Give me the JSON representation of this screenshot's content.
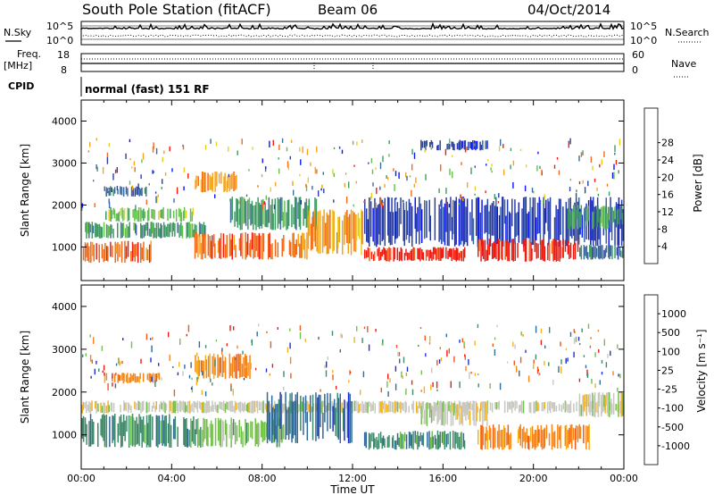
{
  "header": {
    "station": "South Pole Station (fitACF)",
    "beam": "Beam 06",
    "date": "04/Oct/2014"
  },
  "status_panels": {
    "nsky_label": "N.Sky",
    "nsearch_label": "N.Search",
    "noise_ticks": [
      "10^5",
      "10^0"
    ],
    "freq_label": "Freq.",
    "freq_unit": "[MHz]",
    "freq_ticks": [
      "18",
      "8"
    ],
    "nave_label": "Nave",
    "nave_ticks": [
      "60",
      "0"
    ],
    "cpid_label": "CPID",
    "cpid_value": "normal (fast) 151 RF"
  },
  "chart_data": [
    {
      "type": "heatmap",
      "name": "power",
      "ylabel": "Slant Range [km]",
      "y_ticks": [
        1000,
        2000,
        3000,
        4000
      ],
      "ylim": [
        200,
        4500
      ],
      "x_ticks": [
        "00:00",
        "04:00",
        "08:00",
        "12:00",
        "16:00",
        "20:00",
        "00:00"
      ],
      "xlim_hours": [
        0,
        24
      ],
      "colorbar": {
        "label": "Power [dB]",
        "ticks": [
          "4",
          "8",
          "12",
          "16",
          "20",
          "24",
          "28"
        ],
        "colors": [
          "#0a14ff",
          "#2a3fa8",
          "#3f6a9c",
          "#3f9a63",
          "#64c34a",
          "#e9d01c",
          "#f5a21c",
          "#f26a18",
          "#f01a10"
        ]
      },
      "bands": [
        {
          "t0": 0.0,
          "t1": 3.2,
          "y0": 620,
          "y1": 1150,
          "level": 7
        },
        {
          "t0": 0.0,
          "t1": 5.5,
          "y0": 1200,
          "y1": 1600,
          "level": 3
        },
        {
          "t0": 1.0,
          "t1": 5.0,
          "y0": 1600,
          "y1": 1950,
          "level": 4
        },
        {
          "t0": 1.0,
          "t1": 3.0,
          "y0": 2200,
          "y1": 2450,
          "level": 2
        },
        {
          "t0": 5.0,
          "t1": 7.0,
          "y0": 2300,
          "y1": 2800,
          "level": 6
        },
        {
          "t0": 5.0,
          "t1": 10.0,
          "y0": 700,
          "y1": 1350,
          "level": 7
        },
        {
          "t0": 6.5,
          "t1": 10.5,
          "y0": 1400,
          "y1": 2200,
          "level": 3
        },
        {
          "t0": 10.0,
          "t1": 12.5,
          "y0": 800,
          "y1": 1900,
          "level": 6
        },
        {
          "t0": 12.5,
          "t1": 17.0,
          "y0": 650,
          "y1": 1000,
          "level": 8
        },
        {
          "t0": 12.5,
          "t1": 24.0,
          "y0": 1000,
          "y1": 2200,
          "level": 1
        },
        {
          "t0": 15.0,
          "t1": 18.0,
          "y0": 3300,
          "y1": 3550,
          "level": 1
        },
        {
          "t0": 17.5,
          "t1": 22.0,
          "y0": 650,
          "y1": 1200,
          "level": 8
        },
        {
          "t0": 21.5,
          "t1": 24.0,
          "y0": 1400,
          "y1": 2000,
          "level": 3
        },
        {
          "t0": 22.0,
          "t1": 24.0,
          "y0": 700,
          "y1": 1050,
          "level": 2
        }
      ]
    },
    {
      "type": "heatmap",
      "name": "velocity",
      "ylabel": "Slant Range [km]",
      "y_ticks": [
        1000,
        2000,
        3000,
        4000
      ],
      "ylim": [
        200,
        4500
      ],
      "x_ticks": [
        "00:00",
        "04:00",
        "08:00",
        "12:00",
        "16:00",
        "20:00",
        "00:00"
      ],
      "xlim_hours": [
        0,
        24
      ],
      "xlabel": "Time UT",
      "colorbar": {
        "label": "Velocity [m s⁻¹]",
        "ticks": [
          "1000",
          "500",
          "100",
          "25",
          "-25",
          "-100",
          "-500",
          "-1000"
        ],
        "colors": [
          "#1e2fd0",
          "#2f6a9a",
          "#3f8a6a",
          "#73c04a",
          "#c8c8c0",
          "#f5b21c",
          "#f5861c",
          "#f2561a",
          "#f01a10"
        ]
      },
      "bands": [
        {
          "t0": 0.0,
          "t1": 5.0,
          "y0": 700,
          "y1": 1500,
          "level": 2
        },
        {
          "t0": 0.0,
          "t1": 24.0,
          "y0": 1500,
          "y1": 1800,
          "level": 4
        },
        {
          "t0": 1.0,
          "t1": 3.5,
          "y0": 2200,
          "y1": 2450,
          "level": 6
        },
        {
          "t0": 5.0,
          "t1": 7.5,
          "y0": 2300,
          "y1": 2900,
          "level": 6
        },
        {
          "t0": 5.0,
          "t1": 9.0,
          "y0": 700,
          "y1": 1400,
          "level": 3
        },
        {
          "t0": 8.0,
          "t1": 12.0,
          "y0": 800,
          "y1": 2000,
          "level": 1
        },
        {
          "t0": 12.5,
          "t1": 17.0,
          "y0": 650,
          "y1": 1100,
          "level": 2
        },
        {
          "t0": 15.0,
          "t1": 18.0,
          "y0": 1200,
          "y1": 1800,
          "level": 4
        },
        {
          "t0": 17.5,
          "t1": 22.5,
          "y0": 650,
          "y1": 1250,
          "level": 6
        },
        {
          "t0": 22.0,
          "t1": 24.0,
          "y0": 1400,
          "y1": 2000,
          "level": 4
        }
      ]
    }
  ]
}
